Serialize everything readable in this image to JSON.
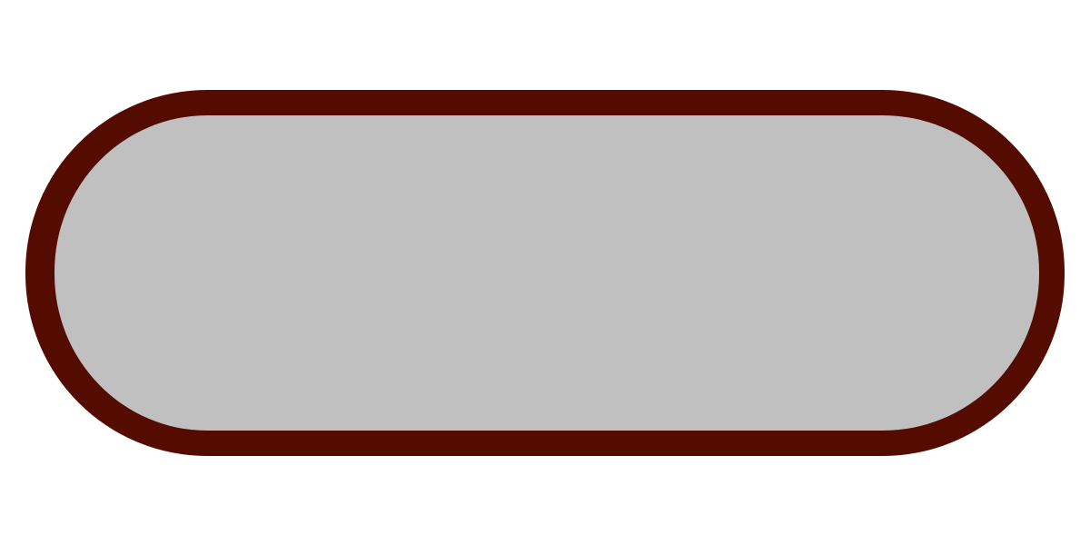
{
  "button": {
    "label": "",
    "fill_color": "#c0c0c0",
    "border_color": "#540b00"
  },
  "page": {
    "background_color": "#ffffff"
  }
}
